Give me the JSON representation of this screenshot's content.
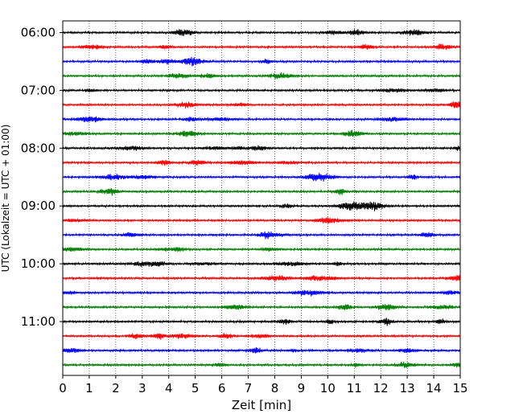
{
  "chart_data": {
    "type": "line",
    "title": "",
    "xlabel": "Zeit  [min]",
    "ylabel": "UTC (Lokalzeit = UTC + 01:00)",
    "xlim": [
      0,
      15
    ],
    "x_ticks": [
      "0",
      "1",
      "2",
      "3",
      "4",
      "5",
      "6",
      "7",
      "8",
      "9",
      "10",
      "11",
      "12",
      "13",
      "14",
      "15"
    ],
    "y_ticks": [
      "06:00",
      "07:00",
      "08:00",
      "09:00",
      "10:00",
      "11:00"
    ],
    "trace_interval_minutes": 15,
    "traces": [
      {
        "start": "06:00",
        "color": "#000000"
      },
      {
        "start": "06:15",
        "color": "#ff0000"
      },
      {
        "start": "06:30",
        "color": "#0000ff"
      },
      {
        "start": "06:45",
        "color": "#007f00"
      },
      {
        "start": "07:00",
        "color": "#000000"
      },
      {
        "start": "07:15",
        "color": "#ff0000"
      },
      {
        "start": "07:30",
        "color": "#0000ff"
      },
      {
        "start": "07:45",
        "color": "#007f00"
      },
      {
        "start": "08:00",
        "color": "#000000"
      },
      {
        "start": "08:15",
        "color": "#ff0000"
      },
      {
        "start": "08:30",
        "color": "#0000ff"
      },
      {
        "start": "08:45",
        "color": "#007f00"
      },
      {
        "start": "09:00",
        "color": "#000000"
      },
      {
        "start": "09:15",
        "color": "#ff0000"
      },
      {
        "start": "09:30",
        "color": "#0000ff"
      },
      {
        "start": "09:45",
        "color": "#007f00"
      },
      {
        "start": "10:00",
        "color": "#000000"
      },
      {
        "start": "10:15",
        "color": "#ff0000"
      },
      {
        "start": "10:30",
        "color": "#0000ff"
      },
      {
        "start": "10:45",
        "color": "#007f00"
      },
      {
        "start": "11:00",
        "color": "#000000"
      },
      {
        "start": "11:15",
        "color": "#ff0000"
      },
      {
        "start": "11:30",
        "color": "#0000ff"
      },
      {
        "start": "11:45",
        "color": "#007f00"
      }
    ],
    "grid": "vertical dotted"
  }
}
